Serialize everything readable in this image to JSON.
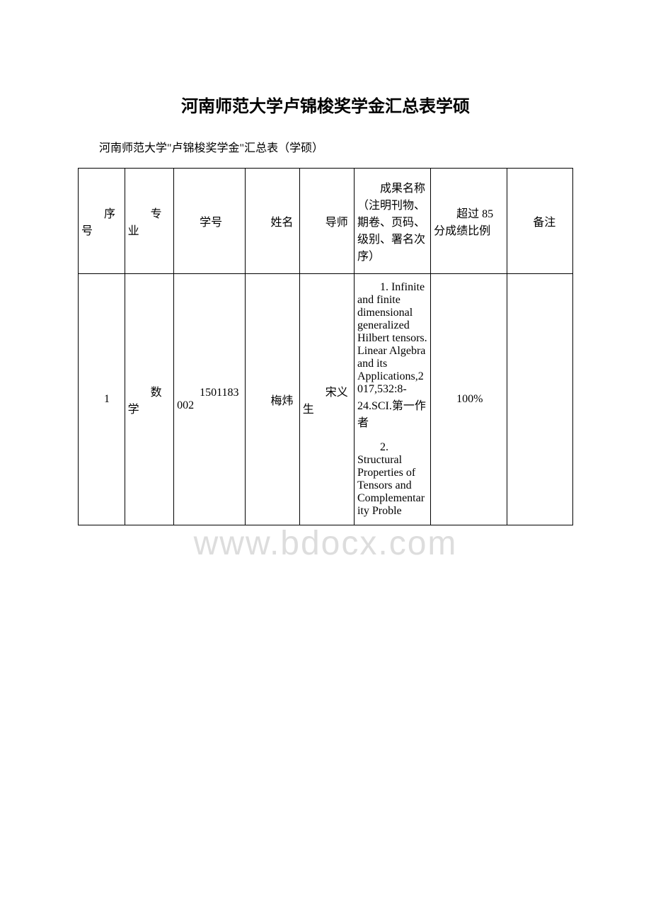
{
  "document": {
    "title": "河南师范大学卢锦梭奖学金汇总表学硕",
    "subtitle": "河南师范大学\"卢锦梭奖学金\"汇总表（学硕）",
    "watermark": "www.bdocx.com"
  },
  "table": {
    "headers": {
      "col1": "序号",
      "col2": "专业",
      "col3": "学号",
      "col4": "姓名",
      "col5": "导师",
      "col6": "成果名称（注明刊物、期卷、页码、级别、署名次序）",
      "col7": "超过 85分成绩比例",
      "col8": "备注"
    },
    "rows": [
      {
        "seq": "1",
        "major": "数学",
        "student_id": "1501183002",
        "name": "梅炜",
        "advisor": "宋义生",
        "achievements": [
          "1. Infinite and finite dimensional generalized Hilbert tensors. Linear Algebra and its Applications,2017,532:8-24.SCI.第一作者",
          "2. Structural Properties of Tensors and Complementarity Proble"
        ],
        "ratio": "100%",
        "remark": ""
      }
    ]
  },
  "styles": {
    "title_fontsize": 24,
    "subtitle_fontsize": 16,
    "cell_fontsize": 16,
    "border_color": "#000000",
    "text_color": "#000000",
    "background_color": "#ffffff",
    "watermark_color": "#dddddd",
    "column_widths": [
      "8.5%",
      "9%",
      "13%",
      "10%",
      "10%",
      "14%",
      "14%",
      "12%"
    ]
  }
}
